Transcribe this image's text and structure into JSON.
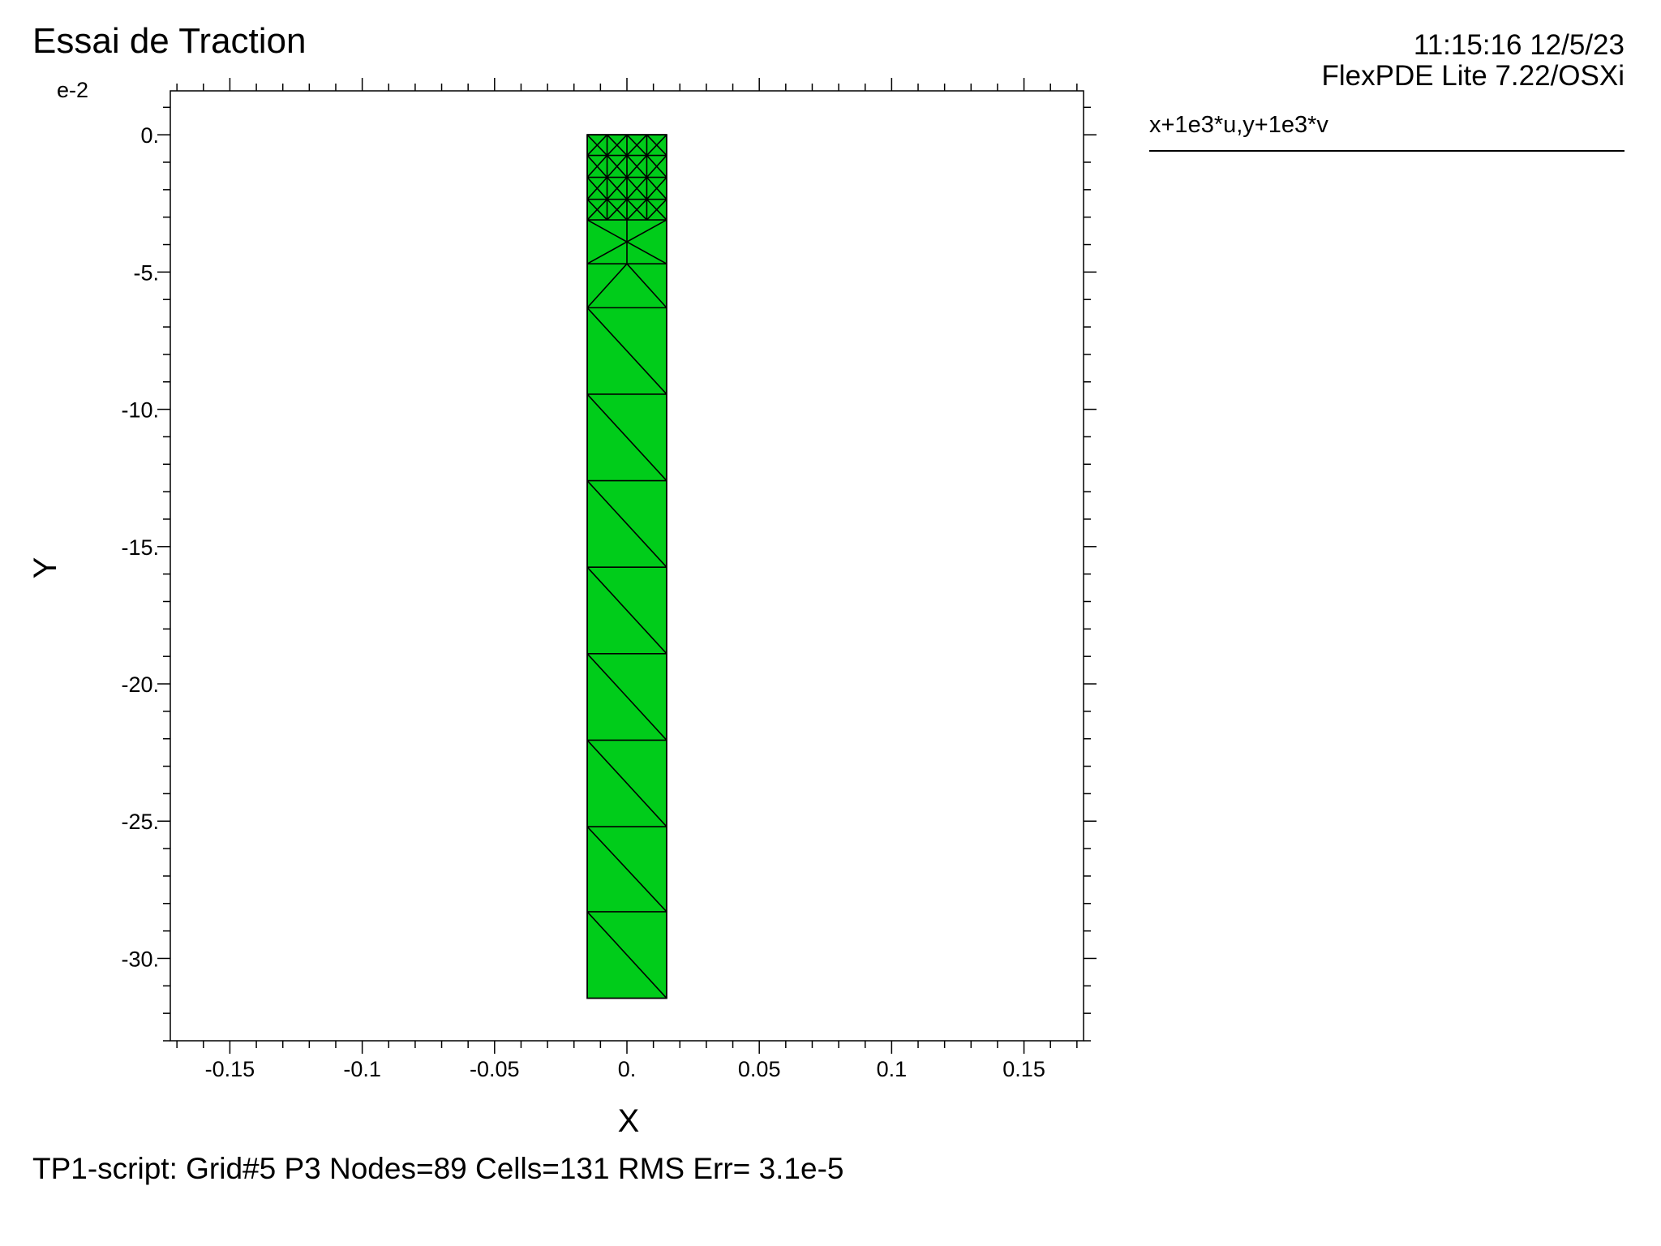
{
  "header": {
    "title": "Essai de Traction",
    "timestamp": "11:15:16 12/5/23",
    "version": "FlexPDE Lite 7.22/OSXi"
  },
  "legend": {
    "label": "x+1e3*u,y+1e3*v"
  },
  "status": {
    "text": "TP1-script:  Grid#5  P3  Nodes=89 Cells=131 RMS Err= 3.1e-5"
  },
  "chart_data": {
    "type": "mesh",
    "xlabel": "X",
    "ylabel": "Y",
    "y_exponent": "e-2",
    "xlim": [
      -0.1725,
      0.1725
    ],
    "ylim": [
      -33.0,
      1.6
    ],
    "x_ticks": [
      {
        "value": -0.15,
        "label": "-0.15"
      },
      {
        "value": -0.1,
        "label": "-0.1"
      },
      {
        "value": -0.05,
        "label": "-0.05"
      },
      {
        "value": 0,
        "label": "0."
      },
      {
        "value": 0.05,
        "label": "0.05"
      },
      {
        "value": 0.1,
        "label": "0.1"
      },
      {
        "value": 0.15,
        "label": "0.15"
      }
    ],
    "y_ticks": [
      {
        "value": 0,
        "label": "0."
      },
      {
        "value": -5,
        "label": "-5."
      },
      {
        "value": -10,
        "label": "-10."
      },
      {
        "value": -15,
        "label": "-15."
      },
      {
        "value": -20,
        "label": "-20."
      },
      {
        "value": -25,
        "label": "-25."
      },
      {
        "value": -30,
        "label": "-30."
      }
    ],
    "x_minor_step": 0.01,
    "y_minor_step": 1,
    "grid": false,
    "fill_color": "#00CC1A",
    "line_color": "#000000",
    "domain": {
      "x": [
        -0.015,
        0.015
      ],
      "y": [
        -31.45,
        0
      ]
    },
    "coarse_rows": [
      {
        "top": -6.3,
        "bottom": -9.45
      },
      {
        "top": -9.45,
        "bottom": -12.6
      },
      {
        "top": -12.6,
        "bottom": -15.75
      },
      {
        "top": -15.75,
        "bottom": -18.9
      },
      {
        "top": -18.9,
        "bottom": -22.05
      },
      {
        "top": -22.05,
        "bottom": -25.2
      },
      {
        "top": -25.2,
        "bottom": -28.3
      },
      {
        "top": -28.3,
        "bottom": -31.45
      }
    ],
    "mid_rows": [
      {
        "top": -3.1,
        "bottom": -4.7
      },
      {
        "top": -4.7,
        "bottom": -6.3
      }
    ],
    "fine_rows": [
      {
        "top": -2.35,
        "bottom": -3.1
      },
      {
        "top": -1.55,
        "bottom": -2.35
      },
      {
        "top": -0.75,
        "bottom": -1.55
      },
      {
        "top": 0,
        "bottom": -0.75
      }
    ]
  }
}
